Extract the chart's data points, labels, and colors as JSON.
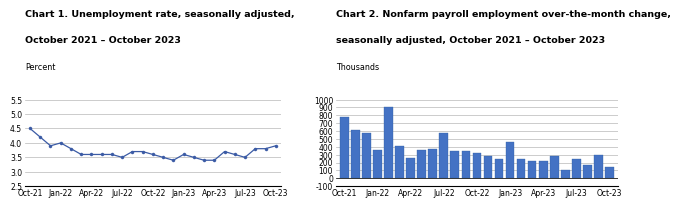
{
  "chart1_title1": "Chart 1. Unemployment rate, seasonally adjusted,",
  "chart1_title2": "October 2021 – October 2023",
  "chart1_ylabel": "Percent",
  "chart1_ylim": [
    2.5,
    5.5
  ],
  "chart1_yticks": [
    2.5,
    3.0,
    3.5,
    4.0,
    4.5,
    5.0,
    5.5
  ],
  "chart1_xticks": [
    "Oct-21",
    "Jan-22",
    "Apr-22",
    "Jul-22",
    "Oct-22",
    "Jan-23",
    "Apr-23",
    "Jul-23",
    "Oct-23"
  ],
  "chart1_values": [
    4.5,
    4.2,
    3.9,
    4.0,
    3.8,
    3.6,
    3.6,
    3.6,
    3.6,
    3.5,
    3.7,
    3.7,
    3.6,
    3.5,
    3.4,
    3.6,
    3.5,
    3.4,
    3.4,
    3.7,
    3.6,
    3.5,
    3.8,
    3.8,
    3.9
  ],
  "chart1_line_color": "#3b5ba5",
  "chart1_marker": "o",
  "chart1_marker_size": 2.2,
  "chart2_title1": "Chart 2. Nonfarm payroll employment over-the-month change,",
  "chart2_title2": "seasonally adjusted, October 2021 – October 2023",
  "chart2_ylabel": "Thousands",
  "chart2_ylim": [
    -100,
    1000
  ],
  "chart2_yticks": [
    -100,
    0,
    100,
    200,
    300,
    400,
    500,
    600,
    700,
    800,
    900,
    1000
  ],
  "chart2_xticks": [
    "Oct-21",
    "Jan-22",
    "Apr-22",
    "Jul-22",
    "Oct-22",
    "Jan-23",
    "Apr-23",
    "Jul-23",
    "Oct-23"
  ],
  "chart2_values": [
    780,
    610,
    570,
    360,
    905,
    415,
    255,
    360,
    370,
    570,
    350,
    345,
    325,
    290,
    240,
    465,
    250,
    215,
    215,
    280,
    105,
    240,
    165,
    295,
    150
  ],
  "chart2_bar_color": "#4472c4",
  "chart2_bar_edge_color": "#3060a0",
  "bg_color": "#ffffff",
  "grid_color": "#b8b8b8",
  "title_fontsize": 6.8,
  "label_fontsize": 5.8,
  "tick_fontsize": 5.5
}
